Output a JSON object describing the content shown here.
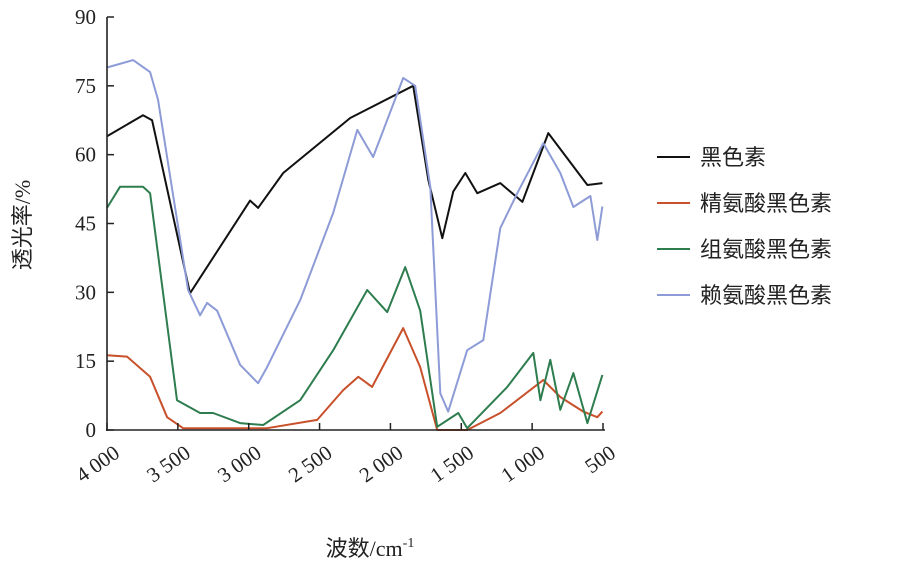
{
  "chart_data": {
    "type": "line",
    "title": "",
    "xlabel": "波数/cm",
    "xlabel_sup": "-1",
    "ylabel": "透光率/%",
    "xlim": [
      4000,
      500
    ],
    "ylim": [
      0,
      90
    ],
    "x_ticks": [
      4000,
      3500,
      3000,
      2500,
      2000,
      1500,
      1000,
      500
    ],
    "x_tick_labels": [
      "4 000",
      "3 500",
      "3 000",
      "2 500",
      "2 000",
      "1 500",
      "1 000",
      "500"
    ],
    "y_ticks": [
      0,
      15,
      30,
      45,
      60,
      75,
      90
    ],
    "y_tick_labels": [
      "0",
      "15",
      "30",
      "45",
      "60",
      "75",
      "90"
    ],
    "grid": false,
    "legend_position": "right",
    "series": [
      {
        "name": "黑色素",
        "color": "#111111",
        "x": [
          4000,
          3746,
          3682,
          3414,
          2990,
          2934,
          2757,
          2284,
          1839,
          1733,
          1634,
          1556,
          1472,
          1387,
          1225,
          1069,
          886,
          610,
          504
        ],
        "y": [
          64,
          68.6,
          67.5,
          29.8,
          50,
          48.4,
          56,
          68,
          75,
          54.5,
          41.8,
          52,
          56,
          51.6,
          53.8,
          49.7,
          64.7,
          53.4,
          53.8
        ]
      },
      {
        "name": "精氨酸黑色素",
        "color": "#c8502a",
        "x": [
          4000,
          3859,
          3696,
          3576,
          3463,
          2870,
          2517,
          2333,
          2227,
          2129,
          1910,
          1790,
          1670,
          1458,
          1225,
          921,
          801,
          639,
          540,
          504
        ],
        "y": [
          16.3,
          16,
          11.6,
          2.8,
          0.4,
          0.4,
          2.2,
          8.7,
          11.6,
          9.4,
          22.2,
          13.7,
          0,
          0,
          3.7,
          10.9,
          7.2,
          4,
          2.8,
          4
        ]
      },
      {
        "name": "组氨酸黑色素",
        "color": "#2e7d4f",
        "x": [
          4000,
          3908,
          3746,
          3696,
          3506,
          3343,
          3251,
          3061,
          2898,
          2637,
          2404,
          2164,
          2023,
          1896,
          1790,
          1670,
          1521,
          1458,
          1175,
          992,
          942,
          872,
          801,
          709,
          610,
          504
        ],
        "y": [
          48.4,
          53,
          53,
          51.6,
          6.5,
          3.7,
          3.7,
          1.5,
          1.1,
          6.5,
          17.4,
          30.5,
          25.7,
          35.5,
          26,
          0.7,
          3.7,
          0.4,
          9.4,
          16.8,
          6.5,
          15.3,
          4.4,
          12.4,
          1.5,
          12
        ]
      },
      {
        "name": "赖氨酸黑色素",
        "color": "#8d9bd6",
        "x": [
          4000,
          3816,
          3696,
          3640,
          3428,
          3343,
          3294,
          3223,
          3061,
          2934,
          2870,
          2637,
          2404,
          2234,
          2122,
          1910,
          1825,
          1719,
          1648,
          1592,
          1458,
          1345,
          1225,
          1105,
          921,
          801,
          709,
          589,
          540,
          504
        ],
        "y": [
          79,
          80.6,
          78,
          72,
          30.5,
          25,
          27.7,
          26,
          14.2,
          10.2,
          13.7,
          28.3,
          47.3,
          65.4,
          59.5,
          76.7,
          75,
          53,
          8,
          4,
          17.4,
          19.6,
          44,
          51.6,
          62.5,
          56,
          48.6,
          51,
          41.4,
          48.7
        ]
      }
    ]
  }
}
